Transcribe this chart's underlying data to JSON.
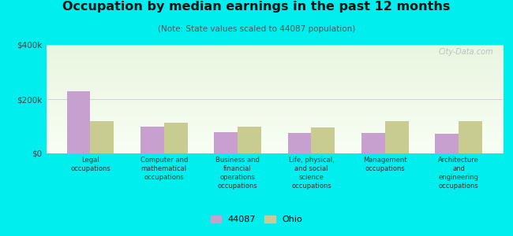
{
  "title": "Occupation by median earnings in the past 12 months",
  "subtitle": "(Note: State values scaled to 44087 population)",
  "categories": [
    "Legal\noccupations",
    "Computer and\nmathematical\noccupations",
    "Business and\nfinancial\noperations\noccupations",
    "Life, physical,\nand social\nscience\noccupations",
    "Management\noccupations",
    "Architecture\nand\nengineering\noccupations"
  ],
  "values_44087": [
    230000,
    98000,
    78000,
    74000,
    76000,
    72000
  ],
  "values_ohio": [
    118000,
    112000,
    100000,
    95000,
    118000,
    120000
  ],
  "color_44087": "#c8a0d0",
  "color_ohio": "#c8cc90",
  "ylim": [
    0,
    400000
  ],
  "yticks": [
    0,
    200000,
    400000
  ],
  "ytick_labels": [
    "$0",
    "$200k",
    "$400k"
  ],
  "outer_background": "#00eeee",
  "legend_label_44087": "44087",
  "legend_label_ohio": "Ohio",
  "bar_width": 0.32
}
